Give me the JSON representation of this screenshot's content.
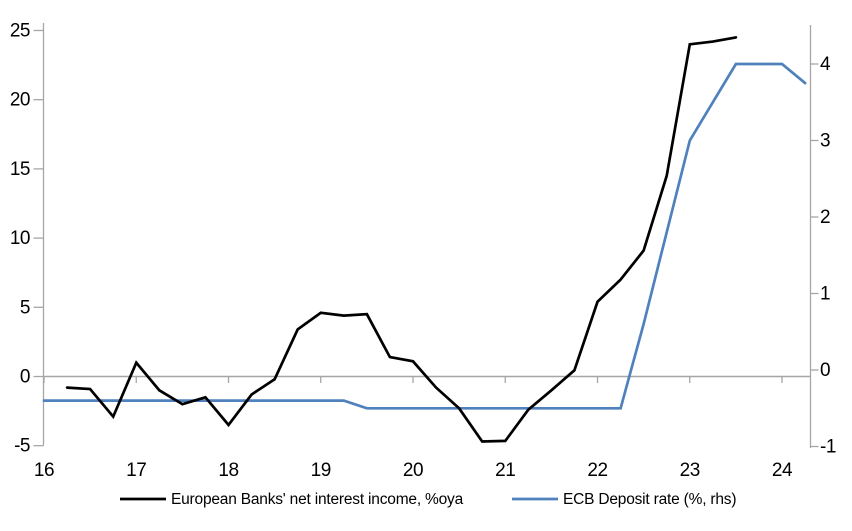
{
  "chart_data": {
    "type": "line",
    "title": "",
    "series": [
      {
        "name": "European Banks' net interest income, %oya",
        "axis": "left",
        "color": "#000000",
        "points": [
          [
            16.25,
            -0.8
          ],
          [
            16.5,
            -0.9
          ],
          [
            16.75,
            -2.9
          ],
          [
            17.0,
            1.0
          ],
          [
            17.25,
            -1.0
          ],
          [
            17.5,
            -2.0
          ],
          [
            17.75,
            -1.5
          ],
          [
            18.0,
            -3.5
          ],
          [
            18.25,
            -1.3
          ],
          [
            18.5,
            -0.2
          ],
          [
            18.75,
            3.4
          ],
          [
            19.0,
            4.6
          ],
          [
            19.25,
            4.4
          ],
          [
            19.5,
            4.5
          ],
          [
            19.75,
            1.4
          ],
          [
            20.0,
            1.1
          ],
          [
            20.25,
            -0.8
          ],
          [
            20.5,
            -2.3
          ],
          [
            20.75,
            -4.7
          ],
          [
            21.0,
            -4.65
          ],
          [
            21.25,
            -2.4
          ],
          [
            21.5,
            -1.0
          ],
          [
            21.75,
            0.45
          ],
          [
            22.0,
            5.4
          ],
          [
            22.25,
            7.0
          ],
          [
            22.5,
            9.1
          ],
          [
            22.75,
            14.5
          ],
          [
            23.0,
            24.0
          ],
          [
            23.25,
            24.2
          ],
          [
            23.5,
            24.5
          ]
        ]
      },
      {
        "name": "ECB Deposit rate (%, rhs)",
        "axis": "right",
        "color": "#4f81bd",
        "points": [
          [
            16.0,
            -0.4
          ],
          [
            19.25,
            -0.4
          ],
          [
            19.5,
            -0.5
          ],
          [
            22.25,
            -0.5
          ],
          [
            22.5,
            0.6
          ],
          [
            22.75,
            1.8
          ],
          [
            23.0,
            3.0
          ],
          [
            23.25,
            3.5
          ],
          [
            23.5,
            4.0
          ],
          [
            24.0,
            4.0
          ],
          [
            24.25,
            3.75
          ]
        ]
      }
    ],
    "x_axis": {
      "tick_labels": [
        "16",
        "17",
        "18",
        "19",
        "20",
        "21",
        "22",
        "23",
        "24"
      ],
      "tick_values": [
        16,
        17,
        18,
        19,
        20,
        21,
        22,
        23,
        24
      ],
      "range": [
        16,
        24.3
      ]
    },
    "left_axis": {
      "tick_labels": [
        "-5",
        "0",
        "5",
        "10",
        "15",
        "20",
        "25"
      ],
      "tick_values": [
        -5,
        0,
        5,
        10,
        15,
        20,
        25
      ],
      "range": [
        -5,
        25.4
      ]
    },
    "right_axis": {
      "tick_labels": [
        "-1",
        "0",
        "1",
        "2",
        "3",
        "4"
      ],
      "tick_values": [
        -1,
        0,
        1,
        2,
        3,
        4
      ],
      "range": [
        -1,
        4.5
      ]
    },
    "legend": {
      "position": "bottom",
      "entries": [
        {
          "label": "European Banks' net interest income, %oya",
          "color": "#000000"
        },
        {
          "label": "ECB Deposit rate (%, rhs)",
          "color": "#4f81bd"
        }
      ]
    },
    "grid": "zero-line-only",
    "colors": {
      "axis": "#a6a6a6",
      "zero_line": "#a6a6a6",
      "background": "#ffffff"
    }
  }
}
